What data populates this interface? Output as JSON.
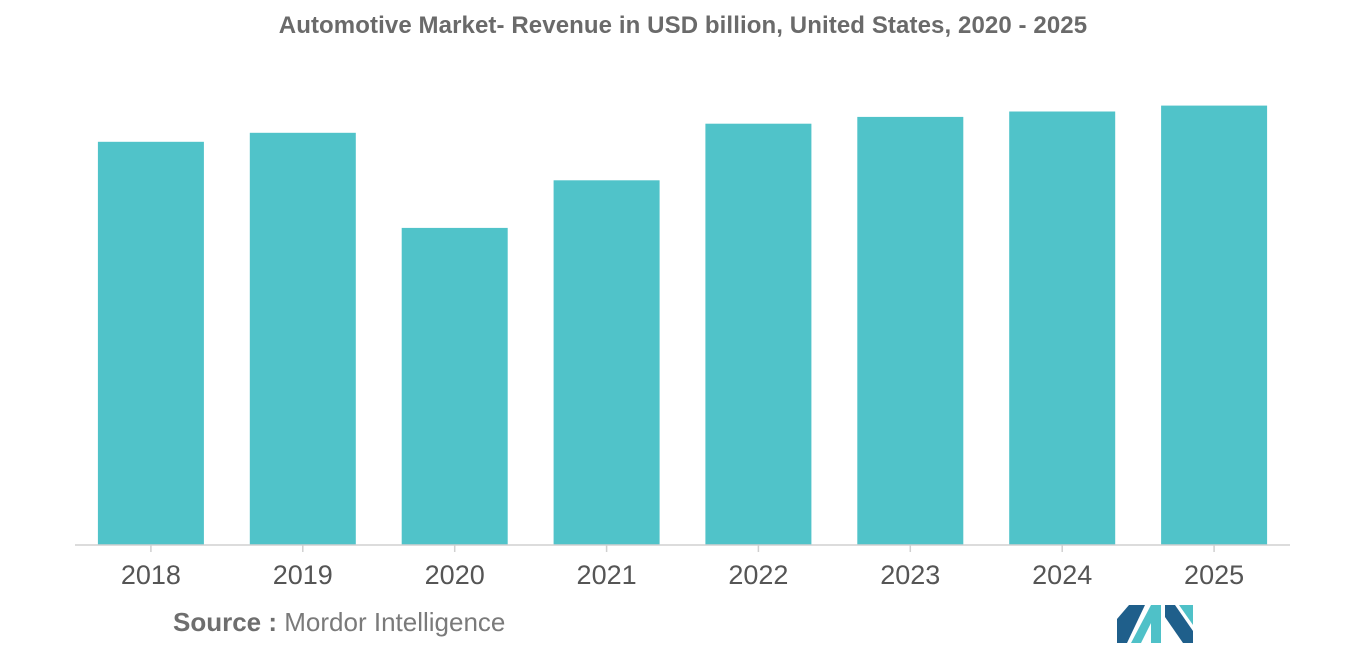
{
  "title": "Automotive Market- Revenue in USD billion, United States, 2020 - 2025",
  "source": {
    "label": "Source :",
    "text": "Mordor Intelligence"
  },
  "logo": {
    "name": "mordor-intelligence-logo",
    "colors": [
      "#1f5f8b",
      "#4fc1c8"
    ]
  },
  "chart_data": {
    "type": "bar",
    "title": "Automotive Market- Revenue in USD billion, United States, 2020 - 2025",
    "xlabel": "",
    "ylabel": "",
    "categories": [
      "2018",
      "2019",
      "2020",
      "2021",
      "2022",
      "2023",
      "2024",
      "2025"
    ],
    "values": [
      89,
      91,
      70,
      80.5,
      93,
      94.5,
      95.7,
      97
    ],
    "ylim": [
      0,
      100
    ],
    "grid": false,
    "legend": "none",
    "bar_color": "#50c3c9",
    "axis_color": "#d0d0d0"
  }
}
